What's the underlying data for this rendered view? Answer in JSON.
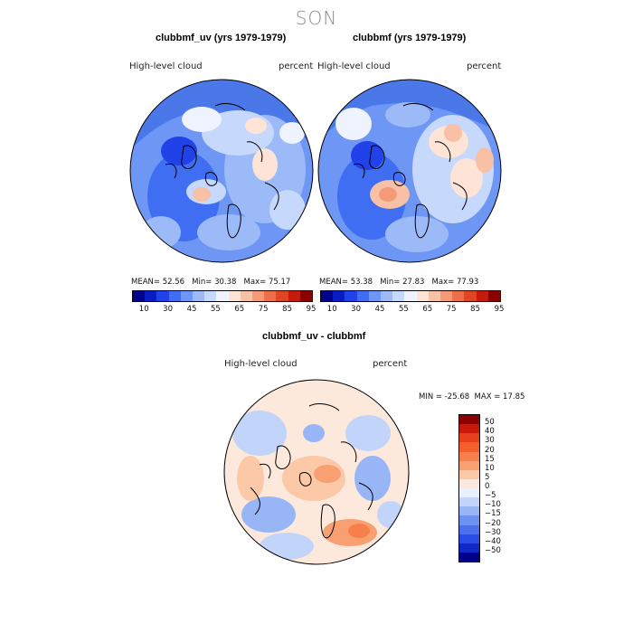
{
  "page_title": "SON",
  "panels": [
    {
      "title": "clubbmf_uv (yrs 1979-1979)",
      "left_label": "High-level cloud",
      "right_label": "percent",
      "stats": {
        "mean_label": "MEAN=",
        "mean": "52.56",
        "min_label": "Min=",
        "min": "30.38",
        "max_label": "Max=",
        "max": "75.17"
      }
    },
    {
      "title": "clubbmf (yrs 1979-1979)",
      "left_label": "High-level cloud",
      "right_label": "percent",
      "stats": {
        "mean_label": "MEAN=",
        "mean": "53.38",
        "min_label": "Min=",
        "min": "27.83",
        "max_label": "Max=",
        "max": "77.93"
      }
    }
  ],
  "abs_colorbar": {
    "ticks": [
      "10",
      "30",
      "45",
      "55",
      "65",
      "75",
      "85",
      "95"
    ],
    "colors": [
      "#00008b",
      "#0a1cc4",
      "#2042e8",
      "#3f6ef2",
      "#6e96f4",
      "#9bbaf7",
      "#c6d8fb",
      "#eef3ff",
      "#fde4d6",
      "#f8c0a4",
      "#f49a76",
      "#ef6f4a",
      "#e24524",
      "#c71a0c",
      "#8b0000"
    ]
  },
  "diff_panel": {
    "title": "clubbmf_uv - clubbmf",
    "left_label": "High-level cloud",
    "right_label": "percent",
    "stats": {
      "min_label": "MIN =",
      "min": "-25.68",
      "max_label": "MAX =",
      "max": "17.85"
    }
  },
  "diff_colorbar": {
    "ticks": [
      "50",
      "40",
      "30",
      "20",
      "15",
      "10",
      "5",
      "0",
      "−5",
      "−10",
      "−15",
      "−20",
      "−30",
      "−40",
      "−50"
    ],
    "colors": [
      "#8b0000",
      "#c8190b",
      "#e8401c",
      "#f55f2e",
      "#f77f4c",
      "#f9a072",
      "#fbc8a8",
      "#fde9dc",
      "#eaf1fe",
      "#c2d4fa",
      "#98b5f6",
      "#6e92f2",
      "#4a70ee",
      "#2b4ce6",
      "#1028c8",
      "#00008b"
    ]
  },
  "colors": {
    "ocean_blue": "#4a78e8",
    "light_blue": "#b8cdf8",
    "pale": "#eef3ff",
    "salmon": "#f8c0a4"
  }
}
